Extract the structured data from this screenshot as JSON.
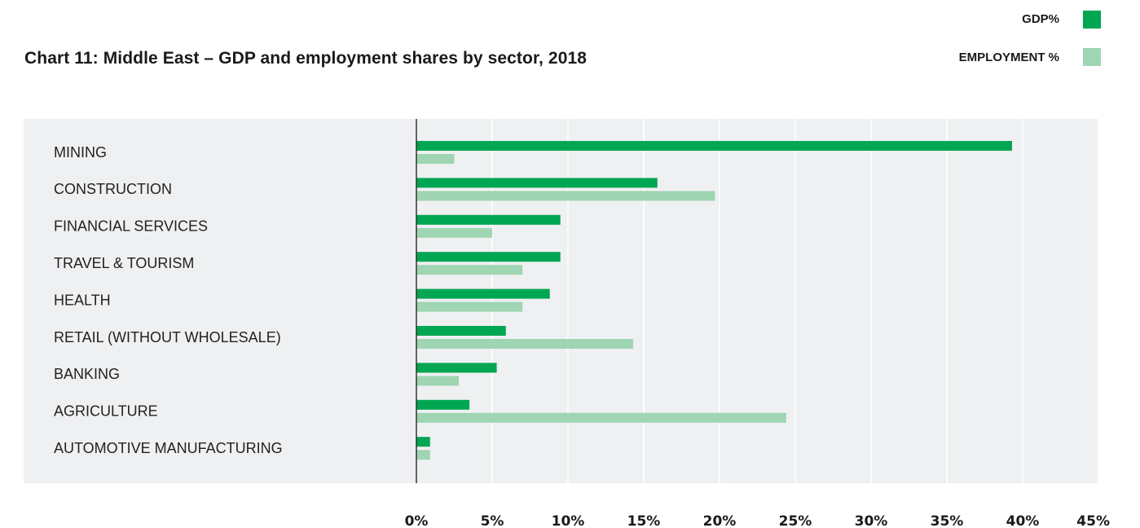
{
  "chart_data": {
    "type": "bar",
    "orientation": "horizontal",
    "title": "Chart 11: Middle East – GDP and employment shares by sector, 2018",
    "categories": [
      "MINING",
      "CONSTRUCTION",
      "FINANCIAL SERVICES",
      "TRAVEL & TOURISM",
      "HEALTH",
      "RETAIL (WITHOUT WHOLESALE)",
      "BANKING",
      "AGRICULTURE",
      "AUTOMOTIVE MANUFACTURING"
    ],
    "series": [
      {
        "name": "GDP%",
        "color": "#00a651",
        "values": [
          39.3,
          15.9,
          9.5,
          9.5,
          8.8,
          5.9,
          5.3,
          3.5,
          0.9
        ]
      },
      {
        "name": "EMPLOYMENT %",
        "color": "#9fd5b2",
        "values": [
          2.5,
          19.7,
          5.0,
          7.0,
          7.0,
          14.3,
          2.8,
          24.4,
          0.9
        ]
      }
    ],
    "xlim": [
      0,
      45
    ],
    "xticks": [
      0,
      5,
      10,
      15,
      20,
      25,
      30,
      35,
      40,
      45
    ],
    "xtick_labels": [
      "0%",
      "5%",
      "10%",
      "15%",
      "20%",
      "25%",
      "30%",
      "35%",
      "40%",
      "45%"
    ],
    "grid": "vertical",
    "legend_position": "top-right",
    "background_color": "#eff0f2"
  }
}
